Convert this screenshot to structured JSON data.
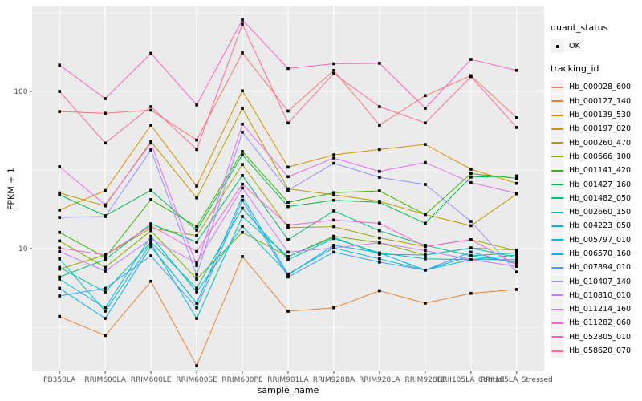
{
  "figure": {
    "background": "#FFFFFF",
    "panel_background": "#EBEBEB",
    "grid_color": "#FFFFFF",
    "tick_color": "#333333",
    "tick_label_color": "#4D4D4D",
    "point_color": "#000000"
  },
  "legend": {
    "quant_status_title": "quant_status",
    "ok_label": "OK",
    "tracking_id_title": "tracking_id",
    "key_fill": "#F2F2F2"
  },
  "chart_data": {
    "type": "line",
    "title": "",
    "xlabel": "sample_name",
    "ylabel": "FPKM + 1",
    "y_scale": "log10",
    "y_ticks": [
      10,
      100
    ],
    "y_tick_labels": [
      "10",
      "100"
    ],
    "y_minor_ticks": [
      3.1623,
      31.623,
      316.23
    ],
    "ylim": [
      1.66,
      347
    ],
    "grid": true,
    "legend_position": "right",
    "marker": "small-black-square",
    "categories": [
      "PB350LA",
      "RRIM600LA",
      "RRIM600LE",
      "RRIM600SE",
      "RRIM600PE",
      "RRIM901LA",
      "RRIM928BA",
      "RRIM928LA",
      "RRIM928LE",
      "RRII105LA_Control",
      "RRII105LA_Stressed"
    ],
    "series": [
      {
        "name": "Hb_000028_600",
        "color": "#F8766D",
        "values": [
          74.5,
          72.6,
          76.0,
          49.0,
          176,
          75.0,
          136,
          61.0,
          94.0,
          126,
          68.0
        ]
      },
      {
        "name": "Hb_000127_140",
        "color": "#EA8331",
        "values": [
          3.7,
          2.8,
          6.2,
          1.8,
          8.9,
          4.0,
          4.2,
          5.4,
          4.5,
          5.2,
          5.5
        ]
      },
      {
        "name": "Hb_000139_530",
        "color": "#D89000",
        "values": [
          17.6,
          23.4,
          61.0,
          25.0,
          101,
          33.0,
          39.5,
          42.7,
          46.0,
          32.0,
          26.0
        ]
      },
      {
        "name": "Hb_000197_020",
        "color": "#C09B00",
        "values": [
          22.6,
          18.7,
          48.0,
          21.0,
          78.0,
          24.0,
          22.0,
          20.0,
          16.5,
          14.0,
          22.3
        ]
      },
      {
        "name": "Hb_000260_470",
        "color": "#A3A500",
        "values": [
          7.4,
          9.1,
          13.5,
          12.1,
          34.3,
          13.6,
          13.8,
          11.7,
          10.3,
          11.4,
          9.7
        ]
      },
      {
        "name": "Hb_000666_100",
        "color": "#7CAE00",
        "values": [
          11.2,
          7.6,
          13.0,
          6.4,
          12.7,
          8.9,
          12.0,
          10.9,
          9.1,
          10.1,
          9.8
        ]
      },
      {
        "name": "Hb_001141_420",
        "color": "#39B600",
        "values": [
          12.7,
          8.8,
          20.5,
          13.8,
          41.5,
          19.7,
          22.7,
          23.3,
          16.5,
          30.0,
          28.0
        ]
      },
      {
        "name": "Hb_001427_160",
        "color": "#00BB4E",
        "values": [
          22.0,
          16.2,
          23.5,
          13.1,
          39.5,
          18.5,
          20.3,
          19.7,
          14.5,
          28.5,
          29.0
        ]
      },
      {
        "name": "Hb_001482_050",
        "color": "#00BF7D",
        "values": [
          6.6,
          8.5,
          14.4,
          11.0,
          29.2,
          11.4,
          17.4,
          13.0,
          10.5,
          9.0,
          9.4
        ]
      },
      {
        "name": "Hb_002660_150",
        "color": "#00C1A3",
        "values": [
          7.6,
          5.3,
          11.0,
          5.6,
          18.1,
          8.5,
          11.6,
          9.4,
          8.6,
          8.5,
          9.1
        ]
      },
      {
        "name": "Hb_004223_050",
        "color": "#00BFC4",
        "values": [
          8.6,
          4.0,
          10.8,
          3.6,
          16.0,
          8.9,
          11.8,
          9.2,
          9.1,
          10.1,
          8.8
        ]
      },
      {
        "name": "Hb_005797_010",
        "color": "#00BAE0",
        "values": [
          6.4,
          4.2,
          12.0,
          5.3,
          13.9,
          6.9,
          10.1,
          8.6,
          7.3,
          8.5,
          8.5
        ]
      },
      {
        "name": "Hb_006570_160",
        "color": "#00B0F6",
        "values": [
          5.6,
          3.6,
          10.3,
          4.5,
          21.5,
          6.8,
          10.5,
          9.4,
          7.3,
          9.0,
          8.2
        ]
      },
      {
        "name": "Hb_007894_010",
        "color": "#35A2FF",
        "values": [
          5.0,
          5.6,
          9.0,
          4.2,
          20.3,
          6.6,
          9.5,
          8.2,
          7.3,
          9.5,
          8.0
        ]
      },
      {
        "name": "Hb_010407_140",
        "color": "#9590FF",
        "values": [
          15.8,
          16.0,
          42.4,
          6.8,
          55.0,
          23.5,
          34.9,
          28.4,
          25.6,
          14.9,
          7.1
        ]
      },
      {
        "name": "Hb_010810_010",
        "color": "#C77CFF",
        "values": [
          9.6,
          7.2,
          11.5,
          8.1,
          24.3,
          9.5,
          10.1,
          10.9,
          9.7,
          8.5,
          7.7
        ]
      },
      {
        "name": "Hb_011214_160",
        "color": "#E76BF3",
        "values": [
          33.2,
          19.0,
          47.0,
          7.8,
          62.0,
          28.7,
          37.7,
          31.0,
          35.3,
          26.3,
          22.5
        ]
      },
      {
        "name": "Hb_011282_060",
        "color": "#FA62DB",
        "values": [
          10.1,
          9.1,
          14.0,
          9.6,
          25.7,
          14.1,
          15.2,
          14.5,
          10.3,
          11.4,
          7.9
        ]
      },
      {
        "name": "Hb_052805_010",
        "color": "#FF62BC",
        "values": [
          147,
          90.0,
          175,
          82.0,
          285,
          140,
          150,
          151,
          78.0,
          160,
          136
        ]
      },
      {
        "name": "Hb_058620_070",
        "color": "#FF6A98",
        "values": [
          100,
          47.0,
          80.0,
          42.7,
          268,
          63.0,
          130,
          80.0,
          63.0,
          124,
          59.0
        ]
      }
    ]
  }
}
